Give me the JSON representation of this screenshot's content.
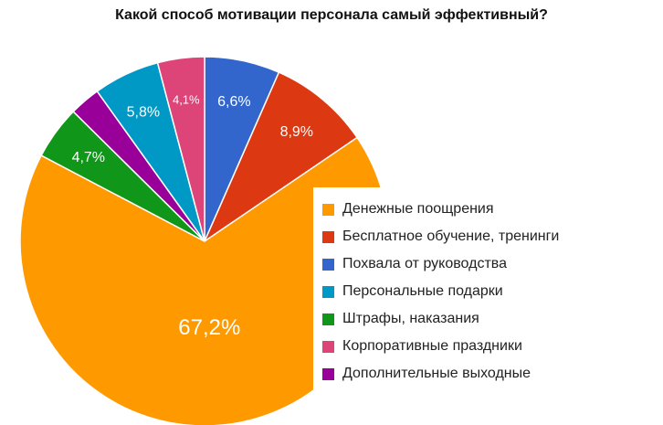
{
  "chart_data": {
    "type": "pie",
    "title": "Какой способ мотивации персонала самый эффективный?",
    "legend_position": "right",
    "slices": [
      {
        "label": "Денежные поощрения",
        "value": 67.2,
        "value_label": "67,2%",
        "color": "#FF9900"
      },
      {
        "label": "Бесплатное обучение, тренинги",
        "value": 8.9,
        "value_label": "8,9%",
        "color": "#DC3912"
      },
      {
        "label": "Похвала от руководства",
        "value": 6.6,
        "value_label": "6,6%",
        "color": "#3366CC"
      },
      {
        "label": "Персональные подарки",
        "value": 5.8,
        "value_label": "5,8%",
        "color": "#0099C6"
      },
      {
        "label": "Штрафы, наказания",
        "value": 4.7,
        "value_label": "4,7%",
        "color": "#109618"
      },
      {
        "label": "Корпоративные праздники",
        "value": 4.1,
        "value_label": "4,1%",
        "color": "#DD4477"
      },
      {
        "label": "Дополнительные выходные",
        "value": 2.7,
        "value_label": "",
        "color": "#990099"
      }
    ],
    "draw_order": [
      2,
      1,
      0,
      4,
      6,
      3,
      5
    ]
  }
}
